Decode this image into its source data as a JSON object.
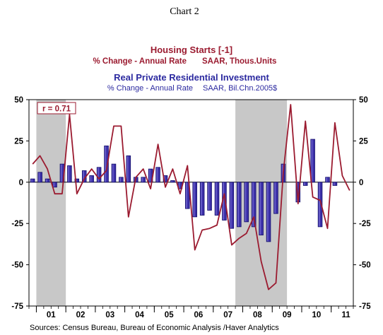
{
  "page_title": "Chart 2",
  "source": "Sources:  Census Bureau, Bureau of Economic Analysis /Haver Analytics",
  "correlation_label": "r = 0.71",
  "colors": {
    "line": "#9b1b30",
    "bar_fill": "#3b2fa8",
    "bar_stroke": "#14106b",
    "bar_highlight": "#8f86e6",
    "recession": "#c8c8c8",
    "title_red": "#9b1b30",
    "title_blue": "#2c2aa0"
  },
  "chart_data": {
    "type": "bar",
    "title_line": "Housing Starts [-1]",
    "subtitle_line": [
      "% Change - Annual Rate",
      "SAAR, Thous.Units"
    ],
    "title_bar": "Real Private Residential Investment",
    "subtitle_bar": [
      "% Change - Annual Rate",
      "SAAR, Bil.Chn.2005$"
    ],
    "x_tick_labels": [
      "01",
      "02",
      "03",
      "04",
      "05",
      "06",
      "07",
      "08",
      "09",
      "10",
      "11"
    ],
    "y_ticks": [
      50,
      25,
      0,
      -25,
      -50,
      -75
    ],
    "ylim": [
      -75,
      50
    ],
    "recession_shading": [
      [
        "2001Q1",
        "2001Q4"
      ],
      [
        "2007Q4",
        "2009Q2"
      ]
    ],
    "quarters": [
      "2000Q4",
      "2001Q1",
      "2001Q2",
      "2001Q3",
      "2001Q4",
      "2002Q1",
      "2002Q2",
      "2002Q3",
      "2002Q4",
      "2003Q1",
      "2003Q2",
      "2003Q3",
      "2003Q4",
      "2004Q1",
      "2004Q2",
      "2004Q3",
      "2004Q4",
      "2005Q1",
      "2005Q2",
      "2005Q3",
      "2005Q4",
      "2006Q1",
      "2006Q2",
      "2006Q3",
      "2006Q4",
      "2007Q1",
      "2007Q2",
      "2007Q3",
      "2007Q4",
      "2008Q1",
      "2008Q2",
      "2008Q3",
      "2008Q4",
      "2009Q1",
      "2009Q2",
      "2009Q3",
      "2009Q4",
      "2010Q1",
      "2010Q2",
      "2010Q3",
      "2010Q4",
      "2011Q1",
      "2011Q2",
      "2011Q3"
    ],
    "series": [
      {
        "type": "bar",
        "values": [
          2,
          6,
          2,
          -3,
          11,
          10,
          2,
          7,
          4,
          9,
          22,
          11,
          3,
          16,
          3,
          3,
          8,
          9,
          4,
          1,
          -4,
          -16,
          -21,
          -20,
          -17,
          -20,
          -23,
          -28,
          -27,
          -24,
          -27,
          -32,
          -36,
          -19,
          11,
          0,
          -12,
          -2,
          26,
          -27,
          3,
          -2,
          0,
          0
        ]
      },
      {
        "type": "line",
        "values": [
          11,
          16,
          8,
          -7,
          -7,
          41,
          -7,
          2,
          8,
          2,
          7,
          34,
          34,
          -21,
          3,
          8,
          -4,
          23,
          -3,
          8,
          -7,
          10,
          -41,
          -29,
          -28,
          -26,
          -7,
          -38,
          -34,
          -31,
          -21,
          -48,
          -65,
          -61,
          6,
          47,
          -13,
          37,
          -9,
          -11,
          -28,
          36,
          4,
          -5
        ]
      }
    ]
  }
}
